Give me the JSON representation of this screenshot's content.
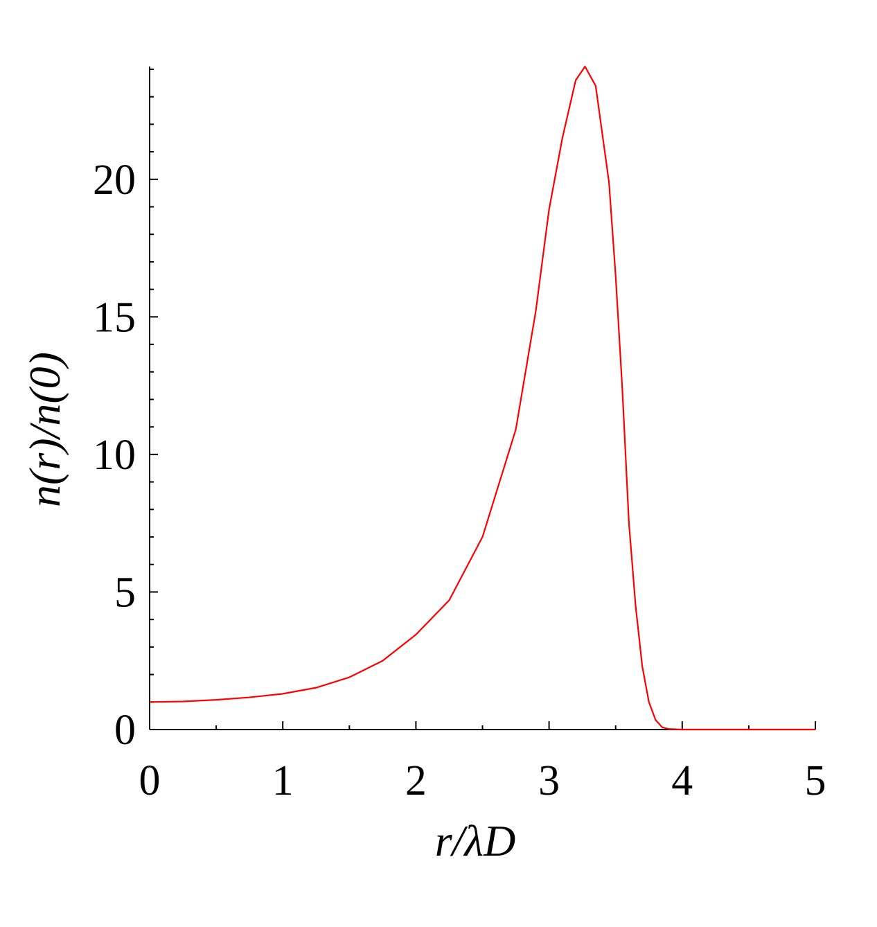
{
  "chart_data": {
    "type": "line",
    "x_label": "r/λD",
    "y_label": "n(r)/n(0)",
    "x": [
      0,
      0.25,
      0.5,
      0.75,
      1.0,
      1.25,
      1.5,
      1.75,
      2.0,
      2.25,
      2.5,
      2.75,
      2.9,
      3.0,
      3.1,
      3.2,
      3.27,
      3.35,
      3.45,
      3.5,
      3.55,
      3.6,
      3.65,
      3.7,
      3.75,
      3.8,
      3.85,
      3.9,
      4.0,
      4.5,
      5.0
    ],
    "series": [
      {
        "name": "n(r)/n(0)",
        "color": "#ff0000",
        "values": [
          1.0,
          1.02,
          1.08,
          1.17,
          1.3,
          1.52,
          1.9,
          2.5,
          3.45,
          4.7,
          7.0,
          10.9,
          15.2,
          18.9,
          21.5,
          23.6,
          24.1,
          23.4,
          19.9,
          16.5,
          12.4,
          7.5,
          4.5,
          2.3,
          1.0,
          0.35,
          0.08,
          0.02,
          0,
          0,
          0
        ]
      }
    ],
    "xlim": [
      0,
      5
    ],
    "ylim": [
      0,
      24.1
    ],
    "xticks": [
      0,
      1,
      2,
      3,
      4,
      5
    ],
    "yticks": [
      0,
      5,
      10,
      15,
      20
    ],
    "grid": false
  }
}
